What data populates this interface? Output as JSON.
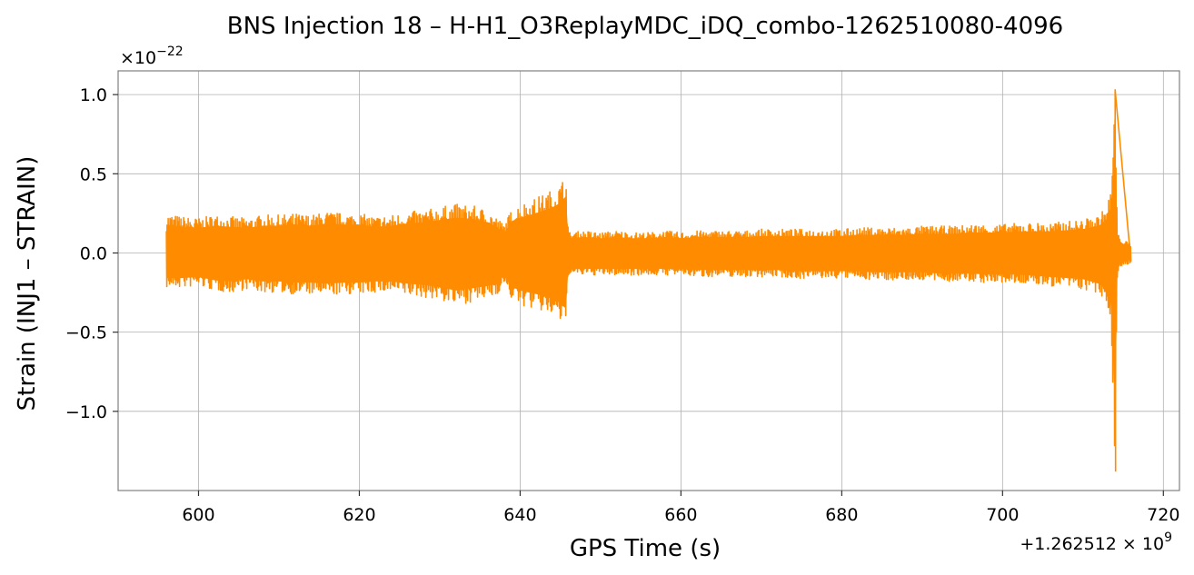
{
  "chart_data": {
    "type": "line",
    "title": "BNS Injection 18 – H-H1_O3ReplayMDC_iDQ_combo-1262510080-4096",
    "xlabel": "GPS Time (s)",
    "ylabel": "Strain (INJ1 – STRAIN)",
    "y_scale_label": "×10",
    "y_scale_exponent": "−22",
    "x_offset_label": "+1.262512 × 10",
    "x_offset_exponent": "9",
    "xlim": [
      590,
      722
    ],
    "ylim": [
      -1.5,
      1.15
    ],
    "x_ticks": [
      600,
      620,
      640,
      660,
      680,
      700,
      720
    ],
    "x_tick_labels": [
      "600",
      "620",
      "640",
      "660",
      "680",
      "700",
      "720"
    ],
    "y_ticks": [
      1.0,
      0.5,
      0.0,
      -0.5,
      -1.0
    ],
    "y_tick_labels": [
      "1.0",
      "0.5",
      "0.0",
      "−0.5",
      "−1.0"
    ],
    "grid": true,
    "series": [
      {
        "color": "#ff8c00",
        "x": [
          596,
          598,
          600,
          602,
          604,
          606,
          608,
          610,
          612,
          614,
          616,
          618,
          620,
          622,
          624,
          626,
          628,
          630,
          632,
          634,
          636,
          637,
          638,
          639,
          640,
          642,
          644,
          645,
          645.7,
          646,
          648,
          650,
          652,
          654,
          656,
          658,
          660,
          662,
          664,
          666,
          668,
          670,
          672,
          674,
          676,
          678,
          680,
          682,
          684,
          686,
          688,
          690,
          692,
          694,
          696,
          698,
          700,
          702,
          704,
          706,
          708,
          710,
          712,
          713,
          713.5,
          714,
          714.3,
          715,
          716
        ],
        "upper": [
          0.25,
          0.23,
          0.22,
          0.24,
          0.23,
          0.22,
          0.24,
          0.24,
          0.25,
          0.24,
          0.26,
          0.25,
          0.25,
          0.23,
          0.24,
          0.26,
          0.27,
          0.29,
          0.31,
          0.3,
          0.27,
          0.23,
          0.18,
          0.28,
          0.31,
          0.35,
          0.4,
          0.44,
          0.5,
          0.13,
          0.14,
          0.13,
          0.14,
          0.13,
          0.13,
          0.14,
          0.13,
          0.14,
          0.14,
          0.14,
          0.14,
          0.15,
          0.15,
          0.15,
          0.15,
          0.15,
          0.15,
          0.16,
          0.16,
          0.16,
          0.16,
          0.17,
          0.17,
          0.17,
          0.18,
          0.18,
          0.18,
          0.19,
          0.19,
          0.19,
          0.2,
          0.21,
          0.24,
          0.3,
          0.42,
          1.03,
          0.12,
          0.08,
          0.06
        ],
        "lower": [
          -0.22,
          -0.22,
          -0.21,
          -0.24,
          -0.25,
          -0.23,
          -0.25,
          -0.25,
          -0.26,
          -0.26,
          -0.27,
          -0.26,
          -0.26,
          -0.25,
          -0.25,
          -0.27,
          -0.28,
          -0.3,
          -0.33,
          -0.31,
          -0.29,
          -0.27,
          -0.2,
          -0.3,
          -0.33,
          -0.36,
          -0.4,
          -0.44,
          -0.49,
          -0.14,
          -0.14,
          -0.14,
          -0.14,
          -0.14,
          -0.14,
          -0.14,
          -0.14,
          -0.15,
          -0.15,
          -0.15,
          -0.15,
          -0.15,
          -0.15,
          -0.16,
          -0.16,
          -0.16,
          -0.16,
          -0.16,
          -0.17,
          -0.17,
          -0.17,
          -0.17,
          -0.18,
          -0.18,
          -0.18,
          -0.19,
          -0.19,
          -0.19,
          -0.2,
          -0.21,
          -0.22,
          -0.23,
          -0.27,
          -0.33,
          -0.46,
          -1.38,
          -0.12,
          -0.08,
          -0.06
        ]
      }
    ]
  }
}
